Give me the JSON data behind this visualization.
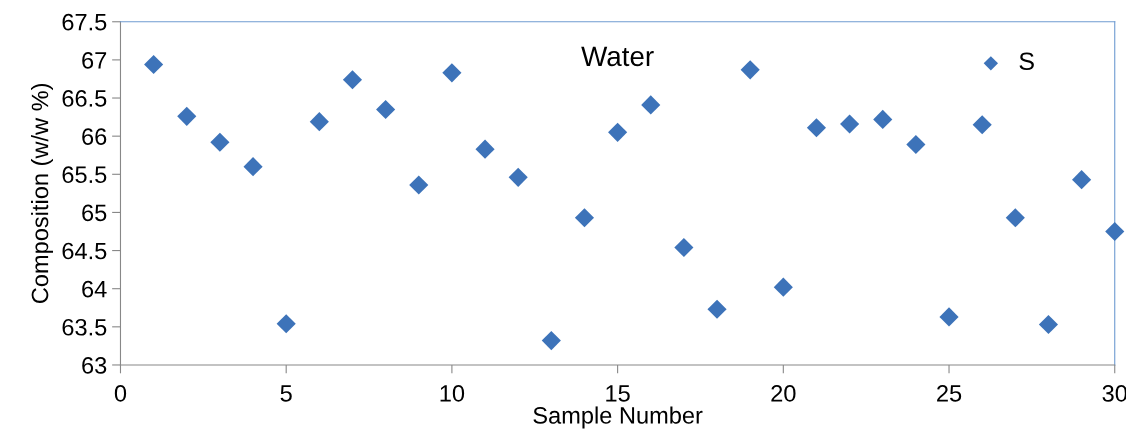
{
  "chart_data": {
    "type": "scatter",
    "title": "Water",
    "xlabel": "Sample Number",
    "ylabel": "Composition (w/w %)",
    "x": [
      1,
      2,
      3,
      4,
      5,
      6,
      7,
      8,
      9,
      10,
      11,
      12,
      13,
      14,
      15,
      16,
      17,
      18,
      19,
      20,
      21,
      22,
      23,
      24,
      25,
      26,
      27,
      28,
      29,
      30
    ],
    "series": [
      {
        "name": "S",
        "color": "#3d73b9",
        "values": [
          66.94,
          66.26,
          65.92,
          65.6,
          63.54,
          66.19,
          66.74,
          66.35,
          65.36,
          66.83,
          65.83,
          65.46,
          63.32,
          64.93,
          66.05,
          66.41,
          64.54,
          63.73,
          66.87,
          64.02,
          66.11,
          66.16,
          66.22,
          65.89,
          63.63,
          66.15,
          64.93,
          63.53,
          65.43,
          64.75
        ]
      }
    ],
    "xlim": [
      0,
      30
    ],
    "xticks": [
      0,
      5,
      10,
      15,
      20,
      25,
      30
    ],
    "ylim": [
      63,
      67.5
    ],
    "yticks": [
      63,
      63.5,
      64,
      64.5,
      65,
      65.5,
      66,
      66.5,
      67,
      67.5
    ],
    "marker": "diamond",
    "legend": "top right",
    "grid": false
  }
}
